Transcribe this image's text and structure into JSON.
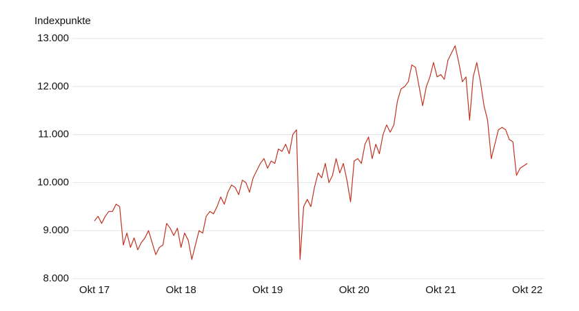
{
  "chart_data": {
    "type": "line",
    "y_axis_label": "Indexpunkte",
    "categories": [
      "Okt 17",
      null,
      null,
      null,
      null,
      null,
      null,
      null,
      null,
      null,
      null,
      null,
      null,
      null,
      null,
      null,
      null,
      null,
      null,
      null,
      null,
      null,
      null,
      null,
      "Okt 18",
      null,
      null,
      null,
      null,
      null,
      null,
      null,
      null,
      null,
      null,
      null,
      null,
      null,
      null,
      null,
      null,
      null,
      null,
      null,
      null,
      null,
      null,
      null,
      "Okt 19",
      null,
      null,
      null,
      null,
      null,
      null,
      null,
      null,
      null,
      null,
      null,
      null,
      null,
      null,
      null,
      null,
      null,
      null,
      null,
      null,
      null,
      null,
      null,
      "Okt 20",
      null,
      null,
      null,
      null,
      null,
      null,
      null,
      null,
      null,
      null,
      null,
      null,
      null,
      null,
      null,
      null,
      null,
      null,
      null,
      null,
      null,
      null,
      null,
      "Okt 21",
      null,
      null,
      null,
      null,
      null,
      null,
      null,
      null,
      null,
      null,
      null,
      null,
      null,
      null,
      null,
      null,
      null,
      null,
      null,
      null,
      null,
      null,
      null,
      "Okt 22"
    ],
    "series": [
      {
        "color": "#c0311f",
        "values": [
          9200,
          9300,
          9150,
          9300,
          9400,
          9400,
          9550,
          9500,
          8700,
          8950,
          8650,
          8850,
          8600,
          8750,
          8850,
          9000,
          8750,
          8500,
          8650,
          8700,
          9150,
          9050,
          8900,
          9050,
          8650,
          8950,
          8800,
          8400,
          8700,
          9000,
          8950,
          9300,
          9400,
          9350,
          9500,
          9700,
          9550,
          9800,
          9950,
          9900,
          9750,
          10050,
          10000,
          9800,
          10100,
          10250,
          10400,
          10500,
          10300,
          10450,
          10400,
          10700,
          10650,
          10800,
          10600,
          11000,
          11100,
          8400,
          9500,
          9650,
          9500,
          9900,
          10200,
          10100,
          10400,
          10000,
          10150,
          10500,
          10200,
          10400,
          10050,
          9600,
          10450,
          10500,
          10400,
          10800,
          10950,
          10500,
          10800,
          10600,
          11000,
          11200,
          11050,
          11200,
          11700,
          11950,
          12000,
          12100,
          12450,
          12400,
          12000,
          11600,
          12000,
          12200,
          12500,
          12200,
          12250,
          12150,
          12550,
          12700,
          12850,
          12500,
          12100,
          12200,
          11300,
          12200,
          12500,
          12100,
          11600,
          11300,
          10500,
          10800,
          11100,
          11150,
          11100,
          10900,
          10850,
          10150,
          10300,
          10350,
          10400
        ]
      }
    ],
    "ylim": [
      8000,
      13000
    ],
    "yticks": [
      {
        "value": 8000,
        "label": "8.000"
      },
      {
        "value": 9000,
        "label": "9.000"
      },
      {
        "value": 10000,
        "label": "10.000"
      },
      {
        "value": 11000,
        "label": "11.000"
      },
      {
        "value": 12000,
        "label": "12.000"
      },
      {
        "value": 13000,
        "label": "13.000"
      }
    ],
    "grid": true
  }
}
